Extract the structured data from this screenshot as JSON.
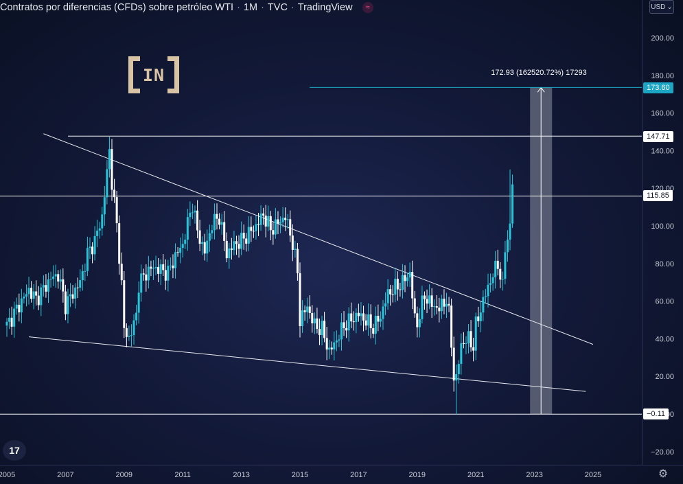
{
  "header": {
    "title": "Contratos por diferencias (CFDs) sobre petróleo WTI",
    "interval": "1M",
    "source": "TVC",
    "platform": "TradingView",
    "indicator_icon": "≈"
  },
  "currency": {
    "label": "USD",
    "chevron": "⌄"
  },
  "logo": {
    "text": "IN"
  },
  "tv_logo": {
    "text": "17"
  },
  "settings_icon": "⚙",
  "price_labels": {
    "measure": "173.60",
    "resistance_high": "147.71",
    "resistance_mid": "115.85",
    "support_low": "−0.11"
  },
  "measure_tooltip": "172.93 (162520.72%) 17293",
  "colors": {
    "up": "#26c6da",
    "down": "#ffffff",
    "line": "#ffffff",
    "measure": "#1aa6c4",
    "grid_text": "#c8ccd6"
  },
  "chart_data": {
    "type": "candlestick",
    "title": "Contratos por diferencias (CFDs) sobre petróleo WTI · 1M · TVC",
    "xlabel": "",
    "ylabel": "USD",
    "ylim": [
      -25,
      212
    ],
    "xlim": [
      2005.0,
      2027.2
    ],
    "y_ticks": [
      -20,
      0,
      20,
      40,
      60,
      80,
      100,
      120,
      140,
      160,
      180,
      200
    ],
    "y_tick_labels": [
      "−20.00",
      "0.00",
      "20.00",
      "40.00",
      "60.00",
      "80.00",
      "100.00",
      "120.00",
      "140.00",
      "160.00",
      "180.00",
      "200.00"
    ],
    "x_ticks": [
      2005,
      2007,
      2009,
      2011,
      2013,
      2015,
      2017,
      2019,
      2021,
      2023,
      2025
    ],
    "x_tick_labels": [
      "2005",
      "2007",
      "2009",
      "2011",
      "2013",
      "2015",
      "2017",
      "2019",
      "2021",
      "2023",
      "2025"
    ],
    "horizontal_lines": [
      147.71,
      115.85,
      -0.11
    ],
    "measure_line": 173.6,
    "trendlines": [
      {
        "name": "upper-trendline",
        "from": [
          2006.25,
          149
        ],
        "to": [
          2025.0,
          37
        ]
      },
      {
        "name": "lower-trendline",
        "from": [
          2005.75,
          41
        ],
        "to": [
          2024.75,
          12
        ]
      }
    ],
    "measure_zone": {
      "from_year": 2022.85,
      "to_year": 2023.6,
      "low": -0.11,
      "high": 173.6
    },
    "price_path": [
      [
        2005.0,
        47
      ],
      [
        2005.5,
        60
      ],
      [
        2005.75,
        66
      ],
      [
        2006.0,
        61
      ],
      [
        2006.5,
        72
      ],
      [
        2006.75,
        74
      ],
      [
        2007.0,
        58
      ],
      [
        2007.5,
        70
      ],
      [
        2007.75,
        85
      ],
      [
        2008.0,
        92
      ],
      [
        2008.25,
        105
      ],
      [
        2008.5,
        140
      ],
      [
        2008.58,
        124
      ],
      [
        2008.75,
        100
      ],
      [
        2008.92,
        68
      ],
      [
        2009.0,
        45
      ],
      [
        2009.15,
        40
      ],
      [
        2009.4,
        50
      ],
      [
        2009.5,
        69
      ],
      [
        2009.75,
        75
      ],
      [
        2010.0,
        78
      ],
      [
        2010.5,
        75
      ],
      [
        2010.75,
        84
      ],
      [
        2011.0,
        90
      ],
      [
        2011.33,
        112
      ],
      [
        2011.5,
        97
      ],
      [
        2011.75,
        86
      ],
      [
        2012.0,
        101
      ],
      [
        2012.25,
        105
      ],
      [
        2012.5,
        85
      ],
      [
        2012.75,
        90
      ],
      [
        2013.0,
        92
      ],
      [
        2013.5,
        100
      ],
      [
        2013.75,
        106
      ],
      [
        2014.0,
        98
      ],
      [
        2014.5,
        105
      ],
      [
        2014.75,
        91
      ],
      [
        2014.92,
        75
      ],
      [
        2015.0,
        50
      ],
      [
        2015.25,
        57
      ],
      [
        2015.5,
        47
      ],
      [
        2015.75,
        45
      ],
      [
        2016.0,
        33
      ],
      [
        2016.2,
        38
      ],
      [
        2016.5,
        47
      ],
      [
        2017.0,
        53
      ],
      [
        2017.5,
        46
      ],
      [
        2017.75,
        52
      ],
      [
        2018.0,
        64
      ],
      [
        2018.5,
        70
      ],
      [
        2018.75,
        75
      ],
      [
        2018.92,
        50
      ],
      [
        2019.0,
        48
      ],
      [
        2019.25,
        63
      ],
      [
        2019.5,
        58
      ],
      [
        2019.75,
        56
      ],
      [
        2020.0,
        61
      ],
      [
        2020.1,
        51
      ],
      [
        2020.25,
        20
      ],
      [
        2020.33,
        18
      ],
      [
        2020.5,
        37
      ],
      [
        2020.75,
        40
      ],
      [
        2020.92,
        36
      ],
      [
        2021.0,
        47
      ],
      [
        2021.25,
        60
      ],
      [
        2021.5,
        71
      ],
      [
        2021.75,
        80
      ],
      [
        2021.92,
        67
      ],
      [
        2022.0,
        88
      ],
      [
        2022.17,
        100
      ],
      [
        2022.25,
        123
      ]
    ]
  }
}
